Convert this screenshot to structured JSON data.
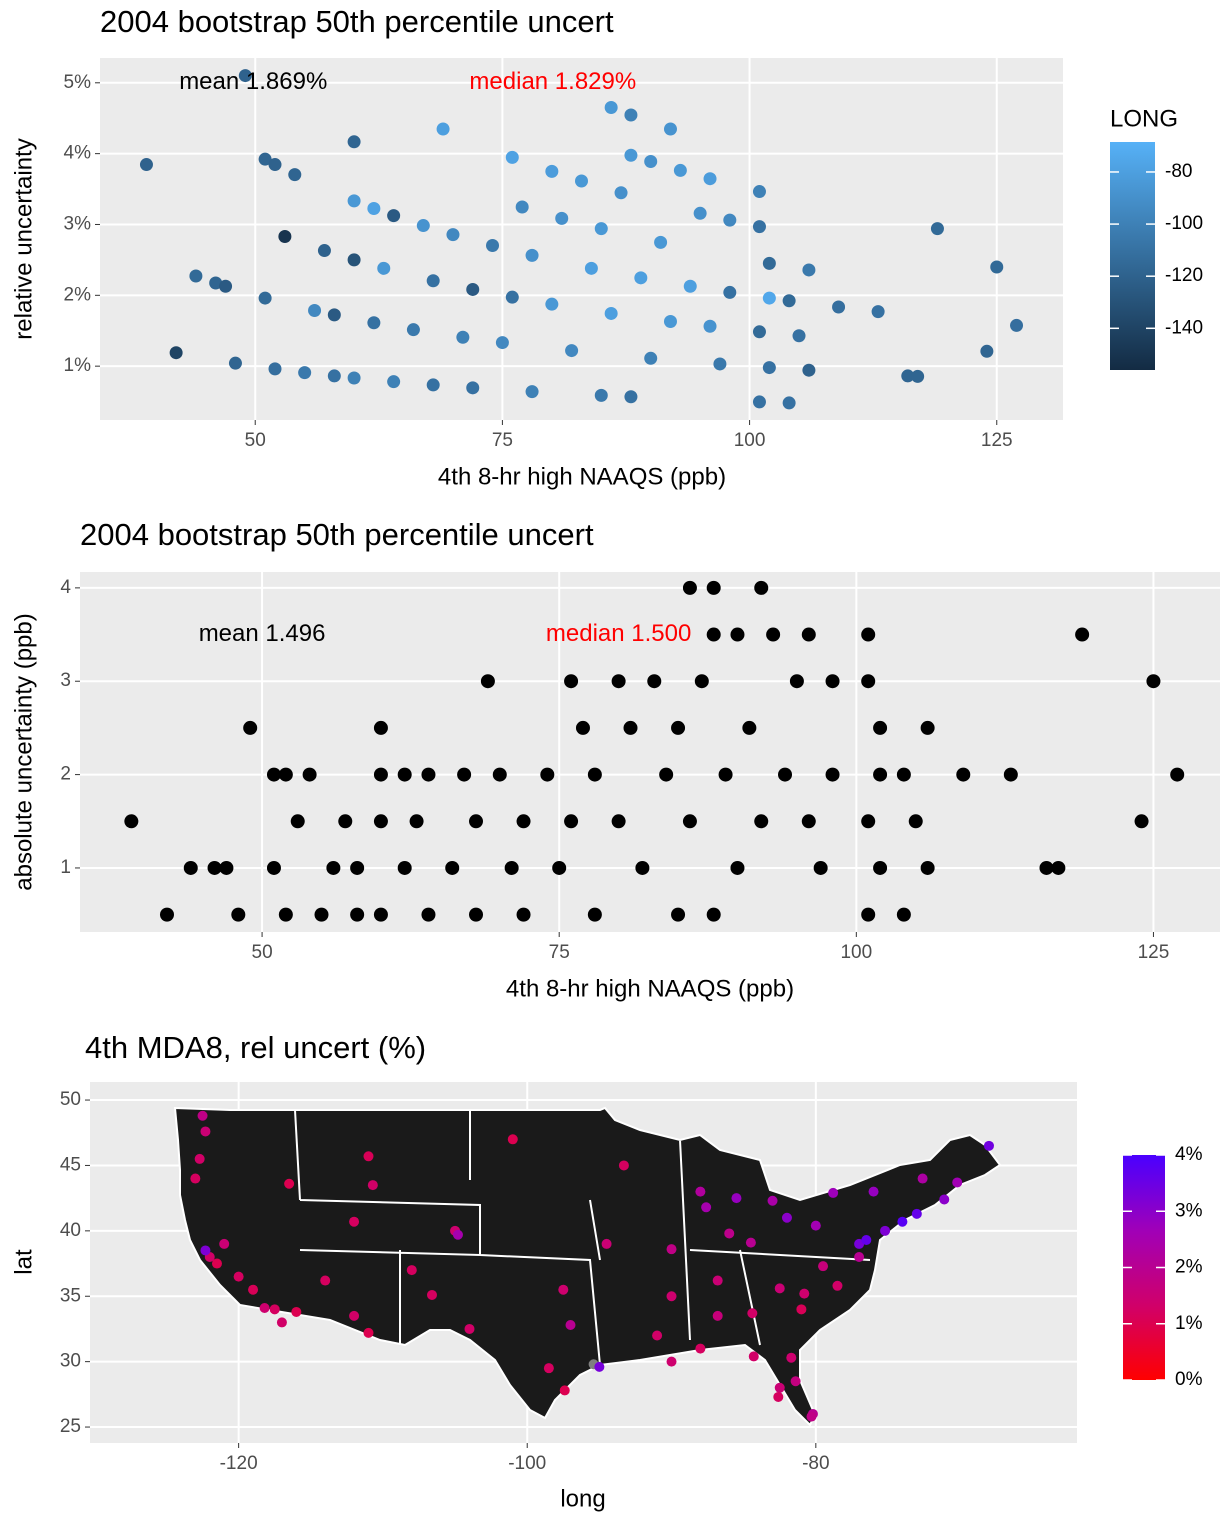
{
  "chart_data": [
    {
      "type": "scatter",
      "title": "2004  bootstrap 50th percentile uncert",
      "xlabel": "4th 8-hr high NAAQS (ppb)",
      "ylabel": "relative uncertainty",
      "xlim": [
        34.3,
        131.7
      ],
      "xticks": [
        50,
        75,
        100,
        125
      ],
      "ylim": [
        0.24,
        5.35
      ],
      "yticks": [
        {
          "value": 1,
          "label": "1%"
        },
        {
          "value": 2,
          "label": "2%"
        },
        {
          "value": 3,
          "label": "3%"
        },
        {
          "value": 4,
          "label": "4%"
        },
        {
          "value": 5,
          "label": "5%"
        }
      ],
      "grid": true,
      "annotations": [
        {
          "text": "mean 1.869%",
          "x": 49.8,
          "y": 5.0,
          "color": "#000000"
        },
        {
          "text": "median 1.829%",
          "x": 80.1,
          "y": 5.0,
          "color": "#ff0000"
        }
      ],
      "colorbar": {
        "title": "LONG",
        "lim": [
          -156,
          -68.5
        ],
        "ticks": [
          -80,
          -100,
          -120,
          -140
        ],
        "colors": [
          "#132B43",
          "#56B1F7"
        ]
      },
      "x": [
        39,
        42,
        44,
        46,
        47,
        48,
        49,
        51,
        51,
        52,
        52,
        53,
        54,
        55,
        56,
        57,
        58,
        58,
        60,
        60,
        60,
        60,
        62,
        62,
        63,
        64,
        64,
        66,
        67,
        68,
        68,
        69,
        70,
        71,
        72,
        72,
        74,
        75,
        76,
        76,
        77,
        78,
        78,
        80,
        80,
        81,
        82,
        83,
        84,
        85,
        85,
        86,
        86,
        87,
        88,
        88,
        88,
        89,
        90,
        90,
        91,
        92,
        92,
        93,
        94,
        95,
        96,
        96,
        97,
        98,
        98,
        101,
        101,
        101,
        101,
        102,
        102,
        102,
        104,
        104,
        105,
        106,
        106,
        109,
        113,
        116,
        117,
        119,
        124,
        125,
        127
      ],
      "values": [
        3.846,
        1.19,
        2.273,
        2.174,
        2.128,
        1.042,
        5.102,
        3.922,
        1.961,
        3.846,
        0.962,
        2.83,
        3.704,
        0.909,
        1.786,
        2.632,
        1.724,
        0.862,
        4.167,
        3.333,
        2.5,
        0.833,
        3.226,
        1.613,
        2.381,
        3.125,
        0.781,
        1.515,
        2.985,
        2.206,
        0.735,
        4.348,
        2.857,
        1.408,
        2.083,
        0.694,
        2.703,
        1.333,
        3.947,
        1.974,
        3.247,
        2.564,
        0.641,
        3.75,
        1.875,
        3.086,
        1.22,
        3.614,
        2.381,
        2.941,
        0.588,
        4.651,
        1.744,
        3.448,
        4.545,
        3.977,
        0.568,
        2.247,
        3.889,
        1.111,
        2.747,
        4.348,
        1.63,
        3.763,
        2.128,
        3.158,
        3.646,
        1.563,
        1.031,
        3.061,
        2.041,
        3.465,
        2.97,
        1.485,
        0.495,
        2.451,
        1.961,
        0.98,
        1.923,
        0.481,
        1.429,
        2.358,
        0.943,
        1.835,
        1.77,
        0.862,
        0.855,
        2.941,
        1.21,
        2.4,
        1.575
      ],
      "color_values": [
        -120,
        -140,
        -115,
        -118,
        -125,
        -118,
        -120,
        -118,
        -115,
        -120,
        -112,
        -150,
        -118,
        -105,
        -95,
        -120,
        -125,
        -110,
        -118,
        -85,
        -130,
        -100,
        -78,
        -110,
        -85,
        -125,
        -100,
        -105,
        -88,
        -110,
        -110,
        -80,
        -95,
        -100,
        -125,
        -110,
        -105,
        -95,
        -78,
        -110,
        -95,
        -90,
        -100,
        -82,
        -85,
        -90,
        -95,
        -85,
        -80,
        -85,
        -105,
        -85,
        -80,
        -90,
        -100,
        -85,
        -110,
        -80,
        -90,
        -100,
        -85,
        -88,
        -85,
        -85,
        -80,
        -90,
        -82,
        -88,
        -105,
        -95,
        -110,
        -100,
        -110,
        -115,
        -110,
        -115,
        -75,
        -110,
        -115,
        -110,
        -110,
        -105,
        -120,
        -112,
        -110,
        -118,
        -118,
        -115,
        -118,
        -115,
        -112
      ]
    },
    {
      "type": "scatter",
      "title": "2004  bootstrap 50th percentile uncert",
      "xlabel": "4th 8-hr high NAAQS (ppb)",
      "ylabel": "absolute uncertainty (ppb)",
      "xlim": [
        34.68,
        130.6
      ],
      "xticks": [
        50,
        75,
        100,
        125
      ],
      "ylim": [
        0.314,
        4.17
      ],
      "yticks": [
        1,
        2,
        3,
        4
      ],
      "grid": true,
      "color": "#000000",
      "annotations": [
        {
          "text": "mean 1.496",
          "x": 50,
          "y": 3.5,
          "color": "#000000"
        },
        {
          "text": "median 1.500",
          "x": 80,
          "y": 3.5,
          "color": "#ff0000"
        }
      ],
      "x": [
        39,
        42,
        44,
        46,
        47,
        48,
        49,
        51,
        51,
        52,
        52,
        53,
        54,
        55,
        56,
        57,
        58,
        58,
        60,
        60,
        60,
        60,
        62,
        62,
        63,
        64,
        64,
        66,
        67,
        68,
        68,
        69,
        70,
        71,
        72,
        72,
        74,
        75,
        76,
        76,
        77,
        78,
        78,
        80,
        80,
        81,
        82,
        83,
        84,
        85,
        85,
        86,
        86,
        87,
        88,
        88,
        88,
        89,
        90,
        90,
        91,
        92,
        92,
        93,
        94,
        95,
        96,
        96,
        97,
        98,
        98,
        101,
        101,
        101,
        101,
        102,
        102,
        102,
        104,
        104,
        105,
        106,
        106,
        109,
        113,
        116,
        117,
        119,
        124,
        125,
        127
      ],
      "values": [
        1.5,
        0.5,
        1,
        1,
        1,
        0.5,
        2.5,
        2,
        1,
        2,
        0.5,
        1.5,
        2,
        0.5,
        1,
        1.5,
        1,
        0.5,
        2.5,
        2,
        1.5,
        0.5,
        2,
        1,
        1.5,
        2,
        0.5,
        1,
        2,
        1.5,
        0.5,
        3,
        2,
        1,
        1.5,
        0.5,
        2,
        1,
        3,
        1.5,
        2.5,
        2,
        0.5,
        3,
        1.5,
        2.5,
        1,
        3,
        2,
        2.5,
        0.5,
        4,
        1.5,
        3,
        4,
        3.5,
        0.5,
        2,
        3.5,
        1,
        2.5,
        4,
        1.5,
        3.5,
        2,
        3,
        3.5,
        1.5,
        1,
        3,
        2,
        3.5,
        3,
        1.5,
        0.5,
        2.5,
        2,
        1,
        2,
        0.5,
        1.5,
        2.5,
        1,
        2,
        2,
        1,
        1,
        3.5,
        1.5,
        3,
        2
      ]
    },
    {
      "type": "scatter",
      "title": "4th MDA8, rel uncert (%)",
      "xlabel": "long",
      "ylabel": "lat",
      "xlim": [
        -130.3,
        -61.9
      ],
      "xticks": [
        -120,
        -100,
        -80
      ],
      "ylim": [
        23.78,
        51.38
      ],
      "yticks": [
        25,
        30,
        35,
        40,
        45,
        50
      ],
      "grid": true,
      "background_map": true,
      "colorbar": {
        "lim": [
          0,
          4
        ],
        "ticks": [
          {
            "value": 0,
            "label": "0%"
          },
          {
            "value": 1,
            "label": "1%"
          },
          {
            "value": 2,
            "label": "2%"
          },
          {
            "value": 3,
            "label": "3%"
          },
          {
            "value": 4,
            "label": "4%"
          }
        ],
        "colors": [
          "#ff0000",
          "#d0006a",
          "#a000b8",
          "#4a00ff"
        ]
      },
      "x": [
        -122.3,
        -122.5,
        -122.7,
        -123,
        -122,
        -121.5,
        -120,
        -119,
        -118.2,
        -117.5,
        -117,
        -116,
        -121,
        -122.3,
        -116.5,
        -112,
        -111,
        -110.7,
        -114,
        -112,
        -111,
        -108,
        -105,
        -104.8,
        -106.6,
        -104,
        -101,
        -97,
        -97.5,
        -98.5,
        -95.4,
        -95,
        -97.4,
        -94.5,
        -93.3,
        -90,
        -87.6,
        -88,
        -86,
        -85.5,
        -84.5,
        -83,
        -82,
        -90,
        -86.8,
        -84.4,
        -86.8,
        -90,
        -88,
        -91,
        -80,
        -77,
        -76.5,
        -75.2,
        -74,
        -73,
        -71.1,
        -70.2,
        -68,
        -72.6,
        -76,
        -78.8,
        -77,
        -78.5,
        -80.8,
        -81,
        -82.5,
        -79.5,
        -81.7,
        -82.5,
        -81.4,
        -80.2,
        -80.3,
        -82.6,
        -84.3
      ],
      "values": [
        47.6,
        48.8,
        45.5,
        44,
        38,
        37.5,
        36.5,
        35.5,
        34.1,
        34,
        33,
        33.8,
        39,
        38.5,
        43.6,
        40.7,
        45.7,
        43.5,
        36.2,
        33.5,
        32.2,
        37,
        40,
        39.7,
        35.1,
        32.5,
        47,
        32.8,
        35.5,
        29.5,
        29.8,
        29.6,
        27.8,
        39,
        45,
        38.6,
        41.8,
        43,
        39.8,
        42.5,
        39.1,
        42.3,
        41,
        35,
        36.2,
        33.7,
        33.5,
        30,
        31,
        32,
        40.4,
        39,
        39.3,
        40,
        40.7,
        41.3,
        42.4,
        43.7,
        46.5,
        44,
        43,
        42.9,
        38,
        35.8,
        35.2,
        34,
        35.6,
        37.3,
        30.3,
        28,
        28.5,
        26,
        25.8,
        27.3,
        30.4
      ],
      "color_values": [
        1.5,
        1.8,
        1.3,
        1.2,
        1.3,
        1.0,
        1.2,
        1.1,
        1.4,
        1.2,
        1.3,
        1.0,
        1.5,
        3.2,
        1.0,
        1.2,
        1.1,
        1.3,
        1.2,
        1.3,
        1.0,
        1.2,
        1.4,
        2.5,
        1.2,
        1.3,
        1.0,
        2.0,
        1.4,
        1.2,
        null,
        3.3,
        1.0,
        1.5,
        1.2,
        1.8,
        2.5,
        2.2,
        1.9,
        2.8,
        2.0,
        2.4,
        3.0,
        1.4,
        1.5,
        1.3,
        1.6,
        1.4,
        1.2,
        1.3,
        2.6,
        3.3,
        3.6,
        3.2,
        3.8,
        3.6,
        3.0,
        2.6,
        3.4,
        2.3,
        2.8,
        2.7,
        2.0,
        1.3,
        1.4,
        1.1,
        1.5,
        1.6,
        1.4,
        1.5,
        1.7,
        2.0,
        1.8,
        1.2,
        1.3
      ]
    }
  ]
}
